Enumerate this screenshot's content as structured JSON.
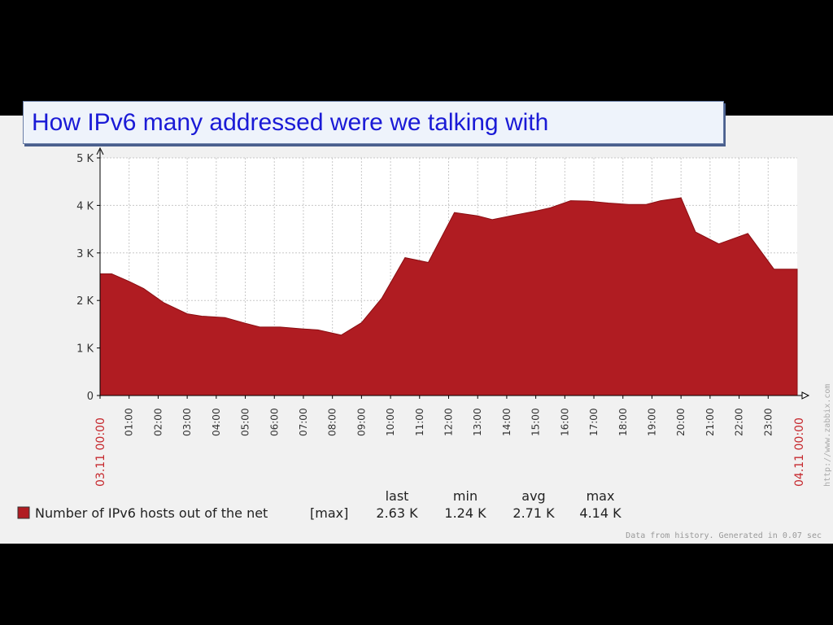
{
  "slide_title": "How IPv6 many addressed were we talking with",
  "colors": {
    "area": "#b01c22",
    "area_stroke": "#8a0e12",
    "date": "#c6292e",
    "grid": "#c8c8c8"
  },
  "chart_data": {
    "type": "area",
    "title": "",
    "xlabel": "",
    "ylabel": "",
    "start_label": "03.11 00:00",
    "end_label": "04.11 00:00",
    "x_ticks": [
      "01:00",
      "02:00",
      "03:00",
      "04:00",
      "05:00",
      "06:00",
      "07:00",
      "08:00",
      "09:00",
      "10:00",
      "11:00",
      "12:00",
      "13:00",
      "14:00",
      "15:00",
      "16:00",
      "17:00",
      "18:00",
      "19:00",
      "20:00",
      "21:00",
      "22:00",
      "23:00"
    ],
    "y_ticks": [
      "0",
      "1 K",
      "2 K",
      "3 K",
      "4 K",
      "5 K"
    ],
    "ylim": [
      0,
      5000
    ],
    "xlim": [
      0,
      24
    ],
    "grid": true,
    "series": [
      {
        "name": "Number of IPv6 hosts out of the net",
        "x": [
          0,
          0.4,
          1,
          1.5,
          2.2,
          3,
          3.5,
          4.3,
          5,
          5.5,
          6.2,
          7,
          7.5,
          8.3,
          9,
          9.7,
          10.5,
          11.3,
          12.2,
          13,
          13.5,
          14.3,
          15,
          15.5,
          16.2,
          16.8,
          17.5,
          18.2,
          18.8,
          19.3,
          20,
          20.5,
          21.3,
          22.3,
          23.2,
          24
        ],
        "values": [
          2560,
          2560,
          2400,
          2250,
          1950,
          1720,
          1670,
          1640,
          1520,
          1440,
          1440,
          1400,
          1380,
          1270,
          1530,
          2050,
          2900,
          2800,
          3850,
          3780,
          3700,
          3800,
          3880,
          3950,
          4100,
          4090,
          4050,
          4020,
          4020,
          4100,
          4160,
          3440,
          3190,
          3410,
          2660,
          2660
        ]
      }
    ],
    "legend": {
      "function": "[max]",
      "headers": [
        "last",
        "min",
        "avg",
        "max"
      ],
      "values": [
        "2.63 K",
        "1.24 K",
        "2.71 K",
        "4.14 K"
      ]
    },
    "footer": "Data from history. Generated in 0.07 sec",
    "watermark": "http://www.zabbix.com"
  }
}
